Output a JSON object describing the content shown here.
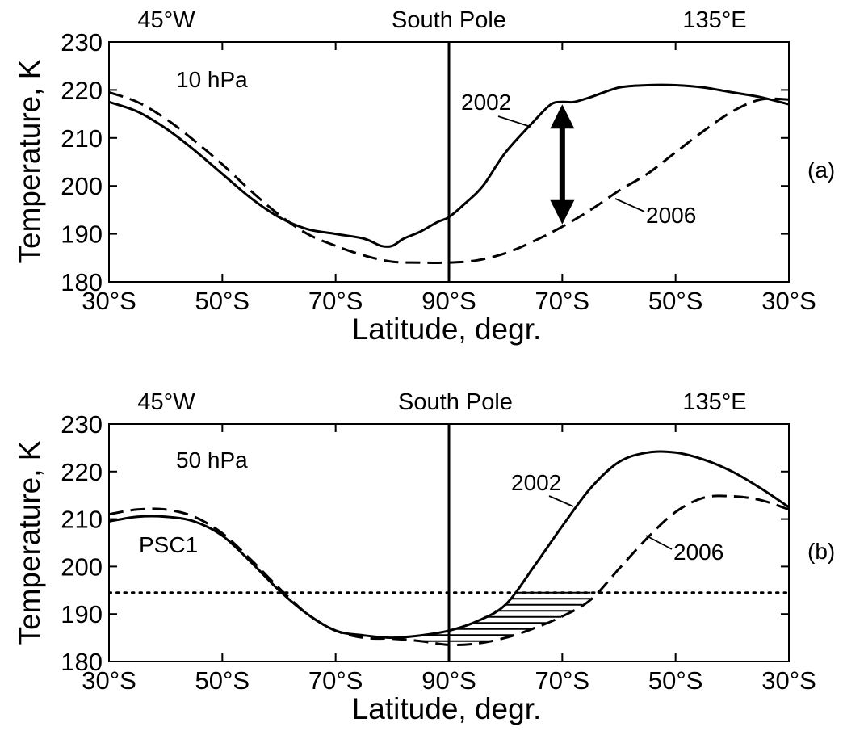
{
  "chart_data": [
    {
      "type": "line",
      "panel_label": "(a)",
      "annotation": "10 hPa",
      "ylabel": "Temperature, K",
      "xlabel": "Latitude, degr.",
      "top_labels": {
        "left": "45°W",
        "center": "South Pole",
        "right": "135°E"
      },
      "xticks": [
        "30°S",
        "50°S",
        "70°S",
        "90°S",
        "70°S",
        "50°S",
        "30°S"
      ],
      "yticks": [
        "180",
        "190",
        "200",
        "210",
        "220",
        "230"
      ],
      "ylim": [
        180,
        230
      ],
      "x_axis_note": "transect from 30°S (45°W) across the South Pole (x = 90) to 30°S (135°E); x given as path position 30–150",
      "series": [
        {
          "name": "2002",
          "style": "solid",
          "x": [
            30,
            35,
            40,
            45,
            50,
            55,
            60,
            65,
            70,
            75,
            78,
            80,
            82,
            85,
            88,
            90,
            93,
            96,
            100,
            105,
            108,
            110,
            112,
            115,
            120,
            125,
            130,
            135,
            140,
            145,
            150
          ],
          "y": [
            217.5,
            215.5,
            212,
            207.5,
            202.5,
            197.5,
            193.5,
            191,
            190,
            189,
            187.5,
            187.5,
            189,
            190.5,
            192.5,
            193.5,
            196.5,
            200,
            207,
            213.5,
            217,
            217.5,
            217.5,
            218.5,
            220.5,
            221,
            221,
            220.5,
            219.5,
            218.5,
            217
          ]
        },
        {
          "name": "2006",
          "style": "dashed",
          "x": [
            30,
            35,
            40,
            45,
            50,
            55,
            60,
            65,
            70,
            75,
            80,
            85,
            90,
            95,
            100,
            105,
            110,
            115,
            120,
            125,
            130,
            135,
            140,
            145,
            150
          ],
          "y": [
            219.5,
            217.5,
            214,
            209.5,
            204.5,
            199,
            194,
            190,
            187.5,
            185.5,
            184.2,
            184,
            184,
            184.5,
            186,
            188.5,
            191.5,
            195,
            199,
            202.5,
            207,
            211.5,
            215.5,
            218,
            218
          ]
        }
      ],
      "arrow": {
        "x": 110,
        "y_from": 192,
        "y_to": 217
      }
    },
    {
      "type": "line",
      "panel_label": "(b)",
      "annotation": "50 hPa",
      "ylabel": "Temperature, K",
      "xlabel": "Latitude, degr.",
      "top_labels": {
        "left": "45°W",
        "center": "South Pole",
        "right": "135°E"
      },
      "xticks": [
        "30°S",
        "50°S",
        "70°S",
        "90°S",
        "70°S",
        "50°S",
        "30°S"
      ],
      "yticks": [
        "180",
        "190",
        "200",
        "210",
        "220",
        "230"
      ],
      "ylim": [
        180,
        230
      ],
      "x_axis_note": "transect from 30°S (45°W) across the South Pole (x = 90) to 30°S (135°E); x given as path position 30–150",
      "series": [
        {
          "name": "2002",
          "style": "solid",
          "x": [
            30,
            35,
            40,
            45,
            50,
            55,
            60,
            65,
            70,
            75,
            80,
            85,
            90,
            95,
            100,
            105,
            110,
            115,
            120,
            125,
            130,
            135,
            140,
            145,
            150
          ],
          "y": [
            209.5,
            210.5,
            210.5,
            209.5,
            206.5,
            201,
            195,
            190,
            186.5,
            185.5,
            185,
            185.5,
            186.5,
            188.5,
            192,
            200,
            208.5,
            216.5,
            222,
            224,
            224,
            222.5,
            220,
            216.5,
            212.5
          ]
        },
        {
          "name": "2006",
          "style": "dashed",
          "x": [
            30,
            35,
            40,
            45,
            50,
            55,
            60,
            65,
            70,
            75,
            80,
            85,
            90,
            95,
            100,
            105,
            110,
            115,
            120,
            125,
            130,
            135,
            140,
            145,
            150
          ],
          "y": [
            211,
            212,
            212,
            210.5,
            207,
            201.5,
            195.5,
            190,
            186.5,
            185,
            184.8,
            184.3,
            183.5,
            183.8,
            185,
            187,
            189.5,
            193,
            199.5,
            206,
            211.5,
            214.5,
            214.8,
            214,
            212
          ]
        },
        {
          "name": "PSC1",
          "style": "dotted",
          "x": [
            30,
            150
          ],
          "y": [
            194.5,
            194.5
          ]
        }
      ],
      "hatched_region": {
        "x_from": 84,
        "x_to": 115,
        "ceiling": 194.5
      }
    }
  ]
}
